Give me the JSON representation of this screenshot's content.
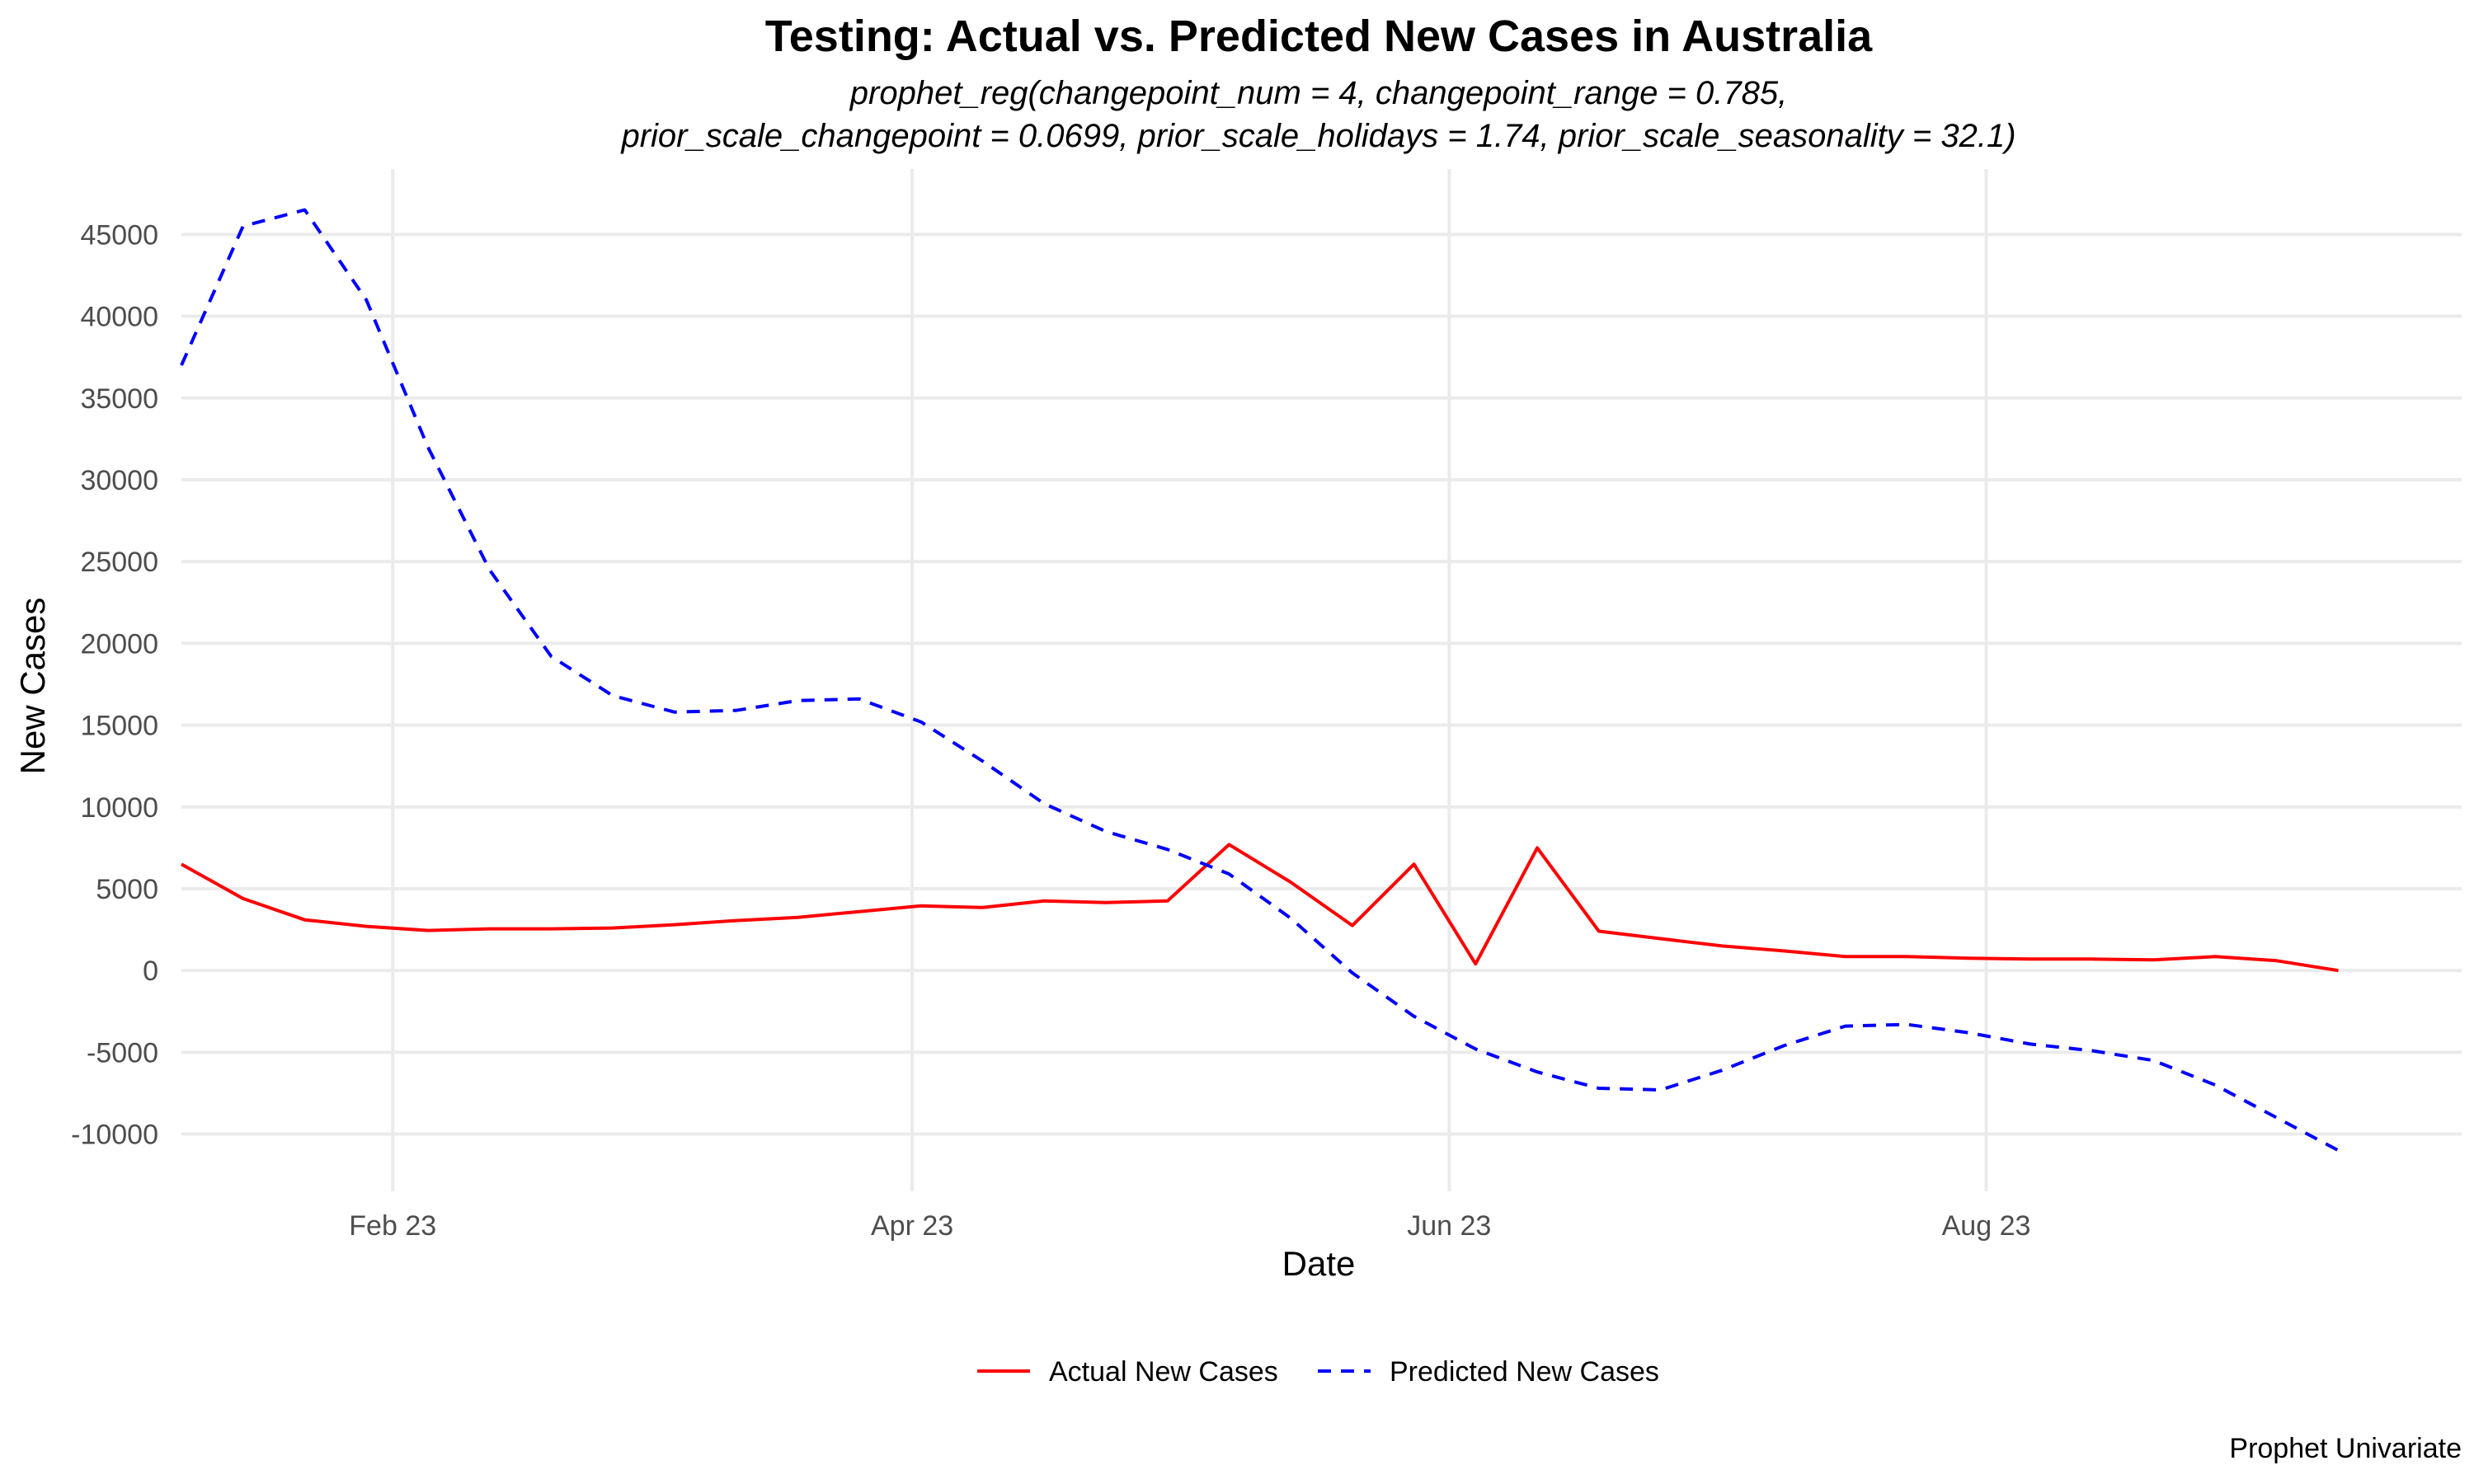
{
  "chart_data": {
    "type": "line",
    "title": "Testing: Actual vs. Predicted New Cases in Australia",
    "subtitle_lines": [
      "prophet_reg(changepoint_num = 4, changepoint_range = 0.785,",
      "prior_scale_changepoint = 0.0699, prior_scale_holidays = 1.74, prior_scale_seasonality = 32.1)"
    ],
    "xlabel": "Date",
    "ylabel": "New Cases",
    "caption": "Prophet Univariate",
    "x_type": "date",
    "xlim": [
      "2023-01-08",
      "2023-09-24"
    ],
    "ylim": [
      -13500,
      49000
    ],
    "x_ticks": [
      {
        "date": "2023-02-01",
        "label": "Feb 23"
      },
      {
        "date": "2023-04-01",
        "label": "Apr 23"
      },
      {
        "date": "2023-06-01",
        "label": "Jun 23"
      },
      {
        "date": "2023-08-01",
        "label": "Aug 23"
      }
    ],
    "y_ticks": [
      -10000,
      -5000,
      0,
      5000,
      10000,
      15000,
      20000,
      25000,
      30000,
      35000,
      40000,
      45000
    ],
    "grid": true,
    "legend_position": "bottom",
    "x": [
      "2023-01-08",
      "2023-01-15",
      "2023-01-22",
      "2023-01-29",
      "2023-02-05",
      "2023-02-12",
      "2023-02-19",
      "2023-02-26",
      "2023-03-05",
      "2023-03-12",
      "2023-03-19",
      "2023-03-26",
      "2023-04-02",
      "2023-04-09",
      "2023-04-16",
      "2023-04-23",
      "2023-04-30",
      "2023-05-07",
      "2023-05-14",
      "2023-05-21",
      "2023-05-28",
      "2023-06-04",
      "2023-06-11",
      "2023-06-18",
      "2023-06-25",
      "2023-07-02",
      "2023-07-09",
      "2023-07-16",
      "2023-07-23",
      "2023-07-30",
      "2023-08-06",
      "2023-08-13",
      "2023-08-20",
      "2023-08-27",
      "2023-09-03",
      "2023-09-10"
    ],
    "series": [
      {
        "name": "Actual New Cases",
        "color": "#ff0000",
        "dash": "solid",
        "values": [
          6500,
          4400,
          3100,
          2700,
          2450,
          2550,
          2550,
          2600,
          2800,
          3050,
          3250,
          3600,
          3950,
          3850,
          4250,
          4150,
          4250,
          7700,
          5400,
          2750,
          6500,
          400,
          7500,
          2400,
          1950,
          1500,
          1200,
          850,
          850,
          750,
          700,
          700,
          650,
          850,
          600,
          0
        ]
      },
      {
        "name": "Predicted New Cases",
        "color": "#0000ff",
        "dash": "dashed",
        "values": [
          37000,
          45500,
          46500,
          41000,
          32000,
          24500,
          19200,
          16800,
          15800,
          15900,
          16500,
          16600,
          15200,
          12800,
          10200,
          8500,
          7400,
          5900,
          3200,
          -150,
          -2800,
          -4800,
          -6200,
          -7200,
          -7300,
          -6100,
          -4600,
          -3400,
          -3300,
          -3800,
          -4500,
          -4900,
          -5500,
          -7000,
          -9000,
          -11000
        ]
      }
    ]
  }
}
